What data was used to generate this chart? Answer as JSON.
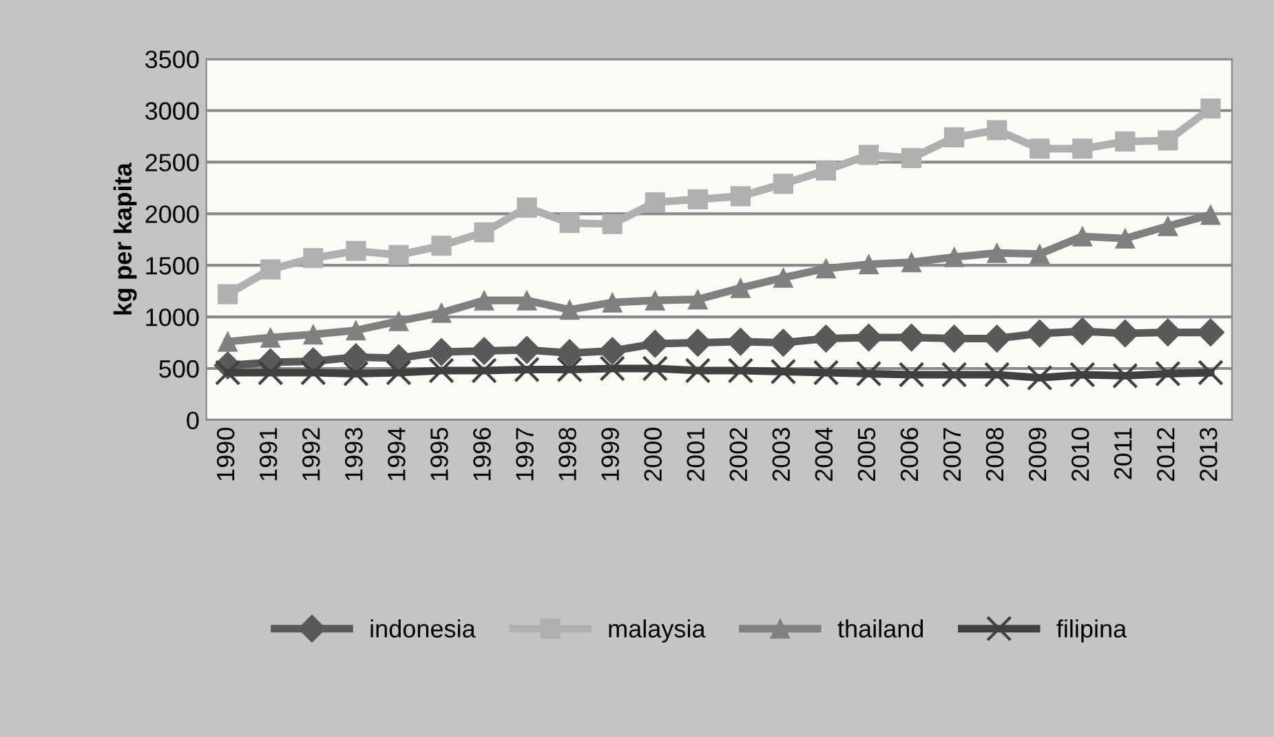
{
  "chart_data": {
    "type": "line",
    "ylabel": "kg per kapita",
    "categories": [
      "1990",
      "1991",
      "1992",
      "1993",
      "1994",
      "1995",
      "1996",
      "1997",
      "1998",
      "1999",
      "2000",
      "2001",
      "2002",
      "2003",
      "2004",
      "2005",
      "2006",
      "2007",
      "2008",
      "2009",
      "2010",
      "2011",
      "2012",
      "2013"
    ],
    "series": [
      {
        "name": "indonesia",
        "color": "#595959",
        "marker": "diamond",
        "values": [
          530,
          560,
          570,
          610,
          600,
          660,
          670,
          680,
          650,
          670,
          740,
          750,
          760,
          750,
          790,
          800,
          800,
          790,
          790,
          840,
          860,
          840,
          850,
          850
        ]
      },
      {
        "name": "malaysia",
        "color": "#b0b0b0",
        "marker": "square",
        "values": [
          1220,
          1460,
          1570,
          1640,
          1600,
          1690,
          1820,
          2060,
          1910,
          1900,
          2110,
          2140,
          2170,
          2290,
          2420,
          2570,
          2540,
          2740,
          2810,
          2630,
          2630,
          2700,
          2710,
          3020
        ]
      },
      {
        "name": "thailand",
        "color": "#808080",
        "marker": "triangle",
        "values": [
          760,
          800,
          830,
          870,
          960,
          1040,
          1160,
          1160,
          1070,
          1140,
          1160,
          1170,
          1280,
          1380,
          1470,
          1510,
          1530,
          1580,
          1620,
          1610,
          1780,
          1760,
          1880,
          1990
        ]
      },
      {
        "name": "filipina",
        "color": "#404040",
        "marker": "cross",
        "values": [
          460,
          460,
          460,
          450,
          460,
          480,
          480,
          490,
          490,
          500,
          500,
          480,
          480,
          470,
          460,
          450,
          440,
          440,
          440,
          410,
          440,
          430,
          450,
          460
        ]
      }
    ],
    "ylim": [
      0,
      3500
    ],
    "yticks": [
      0,
      500,
      1000,
      1500,
      2000,
      2500,
      3000,
      3500
    ],
    "grid": "y",
    "legend": "bottom",
    "line_style": "solid"
  }
}
